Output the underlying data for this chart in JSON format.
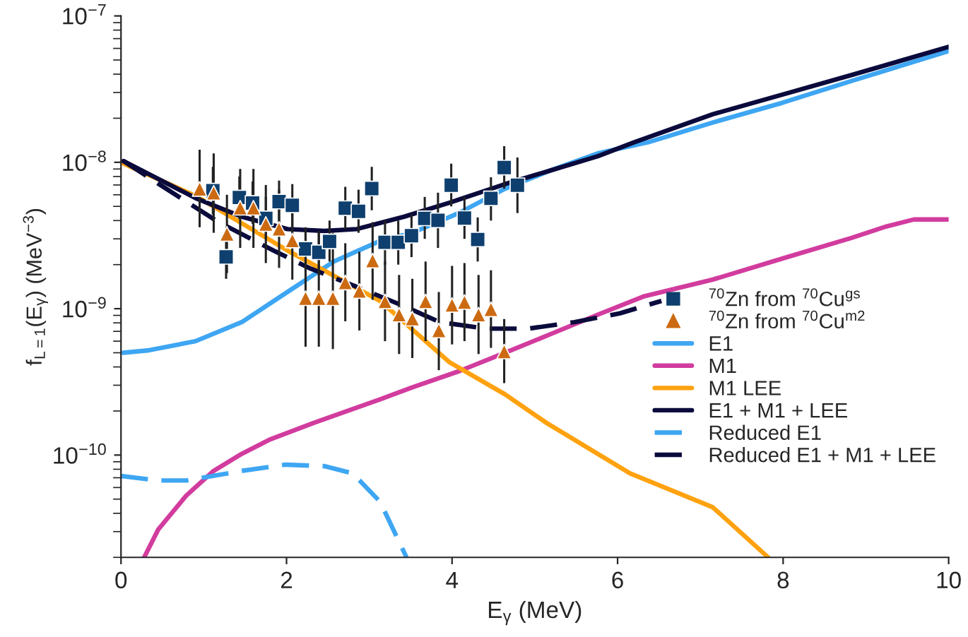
{
  "chart_data": {
    "type": "line",
    "xlabel": "E$_{γ}$ (MeV)",
    "ylabel": "f$_{L=1}$(E$_{γ}$) (MeV$^{−3}$)",
    "log": "y",
    "xlim": [
      0,
      10
    ],
    "ylim": [
      2e-11,
      1e-07
    ],
    "xticks": [
      0,
      2,
      4,
      6,
      8,
      10
    ],
    "yticks": [
      {
        "value": 1e-10,
        "label": "10$^{−10}$"
      },
      {
        "value": 1e-09,
        "label": "10$^{−9}$"
      },
      {
        "value": 1e-08,
        "label": "10$^{−8}$"
      },
      {
        "value": 1e-07,
        "label": "10$^{−7}$"
      }
    ],
    "legend": "right",
    "grid": false,
    "series": [
      {
        "name": "$^{70}$Zn from $^{70}$Cu$^{gs}$",
        "type": "scatter",
        "marker": "square",
        "color": "#0e3f6e",
        "x": [
          1.11,
          1.27,
          1.43,
          1.59,
          1.75,
          1.91,
          2.07,
          2.23,
          2.39,
          2.52,
          2.71,
          2.87,
          3.03,
          3.19,
          3.35,
          3.51,
          3.67,
          3.83,
          3.99,
          4.15,
          4.31,
          4.47,
          4.63,
          4.79
        ],
        "values": [
          6.4e-09,
          2.26e-09,
          5.75e-09,
          5.27e-09,
          4.14e-09,
          5.39e-09,
          5.08e-09,
          2.56e-09,
          2.43e-09,
          2.88e-09,
          4.86e-09,
          4.62e-09,
          6.62e-09,
          2.84e-09,
          2.84e-09,
          3.15e-09,
          4.14e-09,
          4.01e-09,
          6.97e-09,
          4.16e-09,
          2.97e-09,
          5.67e-09,
          9.2e-09,
          6.97e-09
        ],
        "errors": [
          [
            4.4e-09,
            9.3e-09
          ],
          [
            1.6e-09,
            3.2e-09
          ],
          [
            4.1e-09,
            8e-09
          ],
          [
            3.8e-09,
            7.4e-09
          ],
          [
            3e-09,
            5.8e-09
          ],
          [
            3.9e-09,
            7.5e-09
          ],
          [
            3.6e-09,
            7.1e-09
          ],
          [
            1.8e-09,
            3.6e-09
          ],
          [
            1.7e-09,
            3.4e-09
          ],
          [
            2.1e-09,
            4e-09
          ],
          [
            3.5e-09,
            6.8e-09
          ],
          [
            3.3e-09,
            6.5e-09
          ],
          [
            4.7e-09,
            9.3e-09
          ],
          [
            2e-09,
            4e-09
          ],
          [
            2e-09,
            4e-09
          ],
          [
            2.25e-09,
            4.4e-09
          ],
          [
            3e-09,
            5.8e-09
          ],
          [
            2.6e-09,
            6.2e-09
          ],
          [
            5e-09,
            9.8e-09
          ],
          [
            3e-09,
            5.8e-09
          ],
          [
            2.1e-09,
            4.2e-09
          ],
          [
            4e-09,
            7.9e-09
          ],
          [
            6.6e-09,
            1.29e-08
          ],
          [
            4.5e-09,
            1.08e-08
          ]
        ]
      },
      {
        "name": "$^{70}$Zn from $^{70}$Cu$^{m2}$",
        "type": "scatter",
        "marker": "triangle",
        "color": "#cc6a12",
        "x": [
          0.95,
          1.12,
          1.28,
          1.44,
          1.6,
          1.75,
          1.91,
          2.07,
          2.23,
          2.39,
          2.56,
          2.71,
          2.88,
          3.04,
          3.19,
          3.36,
          3.52,
          3.68,
          3.84,
          4.0,
          4.15,
          4.32,
          4.47,
          4.63
        ],
        "values": [
          6.58e-09,
          6.19e-09,
          3.24e-09,
          4.89e-09,
          4.89e-09,
          3.79e-09,
          3.51e-09,
          2.92e-09,
          1.18e-09,
          1.18e-09,
          1.18e-09,
          1.51e-09,
          1.32e-09,
          2.13e-09,
          1.12e-09,
          9.1e-10,
          8.55e-10,
          1.12e-09,
          7.1e-10,
          1.06e-09,
          1.11e-09,
          9.1e-10,
          9.9e-10,
          5.1e-10
        ],
        "errors": [
          [
            3.6e-09,
            1.22e-08
          ],
          [
            3.3e-09,
            1.15e-08
          ],
          [
            1.75e-09,
            6e-09
          ],
          [
            2.6e-09,
            9e-09
          ],
          [
            2.6e-09,
            9e-09
          ],
          [
            2.05e-09,
            7e-09
          ],
          [
            1.9e-09,
            6.5e-09
          ],
          [
            1.58e-09,
            5.4e-09
          ],
          [
            5.5e-10,
            3.3e-09
          ],
          [
            5.5e-10,
            3.3e-09
          ],
          [
            5.3e-10,
            3.3e-09
          ],
          [
            8.2e-10,
            2.8e-09
          ],
          [
            7.1e-10,
            2.45e-09
          ],
          [
            1.15e-09,
            3.9e-09
          ],
          [
            6e-10,
            2.1e-09
          ],
          [
            4.9e-10,
            1.7e-09
          ],
          [
            4.6e-10,
            1.6e-09
          ],
          [
            6e-10,
            2.1e-09
          ],
          [
            3.8e-10,
            1.3e-09
          ],
          [
            5.7e-10,
            1.96e-09
          ],
          [
            6e-10,
            2.05e-09
          ],
          [
            4.9e-10,
            1.7e-09
          ],
          [
            5.4e-10,
            1.83e-09
          ],
          [
            3.1e-10,
            8.5e-10
          ]
        ]
      },
      {
        "name": "E1",
        "line_style": "solid",
        "color": "#3ea6f2",
        "x": [
          0.03,
          0.34,
          0.9,
          1.46,
          2.01,
          2.57,
          3.13,
          3.52,
          4.08,
          4.64,
          5.19,
          5.76,
          6.37,
          7.15,
          7.99,
          8.83,
          10.0
        ],
        "values": [
          5e-10,
          5.2e-10,
          6e-10,
          8.1e-10,
          1.3e-09,
          2.1e-09,
          2.9e-09,
          3.3e-09,
          4.5e-09,
          6.6e-09,
          8.8e-09,
          1.15e-08,
          1.37e-08,
          1.87e-08,
          2.55e-08,
          3.6e-08,
          5.75e-08
        ]
      },
      {
        "name": "M1",
        "line_style": "solid",
        "color": "#d23c9e",
        "x": [
          0.28,
          0.45,
          0.79,
          1.12,
          1.46,
          1.79,
          2.33,
          3.13,
          3.52,
          4.09,
          4.64,
          5.19,
          5.76,
          6.31,
          7.15,
          7.99,
          8.83,
          9.25,
          9.58,
          10.0
        ],
        "values": [
          2e-11,
          3.1e-11,
          5.3e-11,
          7.8e-11,
          1.02e-10,
          1.27e-10,
          1.66e-10,
          2.4e-10,
          2.9e-10,
          3.75e-10,
          5e-10,
          6.7e-10,
          9.1e-10,
          1.21e-09,
          1.58e-09,
          2.2e-09,
          3.05e-09,
          3.65e-09,
          4.07e-09,
          4.07e-09
        ]
      },
      {
        "name": "M1 LEE",
        "line_style": "solid",
        "color": "#ffa20f",
        "x": [
          0.03,
          0.9,
          2.01,
          3.13,
          3.97,
          4.64,
          5.14,
          6.15,
          7.15,
          7.82
        ],
        "values": [
          9.8e-09,
          5.9e-09,
          2.5e-09,
          1.13e-09,
          4.3e-10,
          2.6e-10,
          1.66e-10,
          7.5e-11,
          4.4e-11,
          2e-11
        ]
      },
      {
        "name": "E1 + M1 + LEE",
        "line_style": "solid",
        "color": "#0a0a3c",
        "x": [
          0.03,
          0.9,
          1.46,
          2.01,
          2.46,
          2.85,
          3.42,
          3.97,
          4.64,
          5.19,
          5.76,
          6.2,
          7.15,
          7.99,
          8.83,
          10.0
        ],
        "values": [
          1.02e-08,
          5.7e-09,
          4.25e-09,
          3.5e-09,
          3.4e-09,
          3.5e-09,
          4.25e-09,
          5.3e-09,
          7.1e-09,
          8.8e-09,
          1.1e-08,
          1.37e-08,
          2.13e-08,
          2.9e-08,
          3.95e-08,
          6.15e-08
        ]
      },
      {
        "name": "Reduced E1",
        "line_style": "dashed",
        "color": "#3ea6f2",
        "x": [
          0.0,
          0.45,
          0.79,
          1.46,
          1.99,
          2.46,
          2.8,
          3.13,
          3.45
        ],
        "values": [
          7.2e-11,
          6.7e-11,
          6.7e-11,
          7.8e-11,
          8.6e-11,
          8.4e-11,
          7.5e-11,
          4.8e-11,
          2e-11
        ]
      },
      {
        "name": "Reduced E1 + M1 + LEE",
        "line_style": "dashed",
        "color": "#0a0a3c",
        "x": [
          0.03,
          0.51,
          1.18,
          1.84,
          2.29,
          2.85,
          3.42,
          3.85,
          4.42,
          4.92,
          5.48,
          6.03,
          6.53
        ],
        "values": [
          1.02e-08,
          6.8e-09,
          3.9e-09,
          2.5e-09,
          1.88e-09,
          1.41e-09,
          1.04e-09,
          8.1e-10,
          7.3e-10,
          7.3e-10,
          8.1e-10,
          9.3e-10,
          1.13e-09
        ]
      }
    ]
  }
}
